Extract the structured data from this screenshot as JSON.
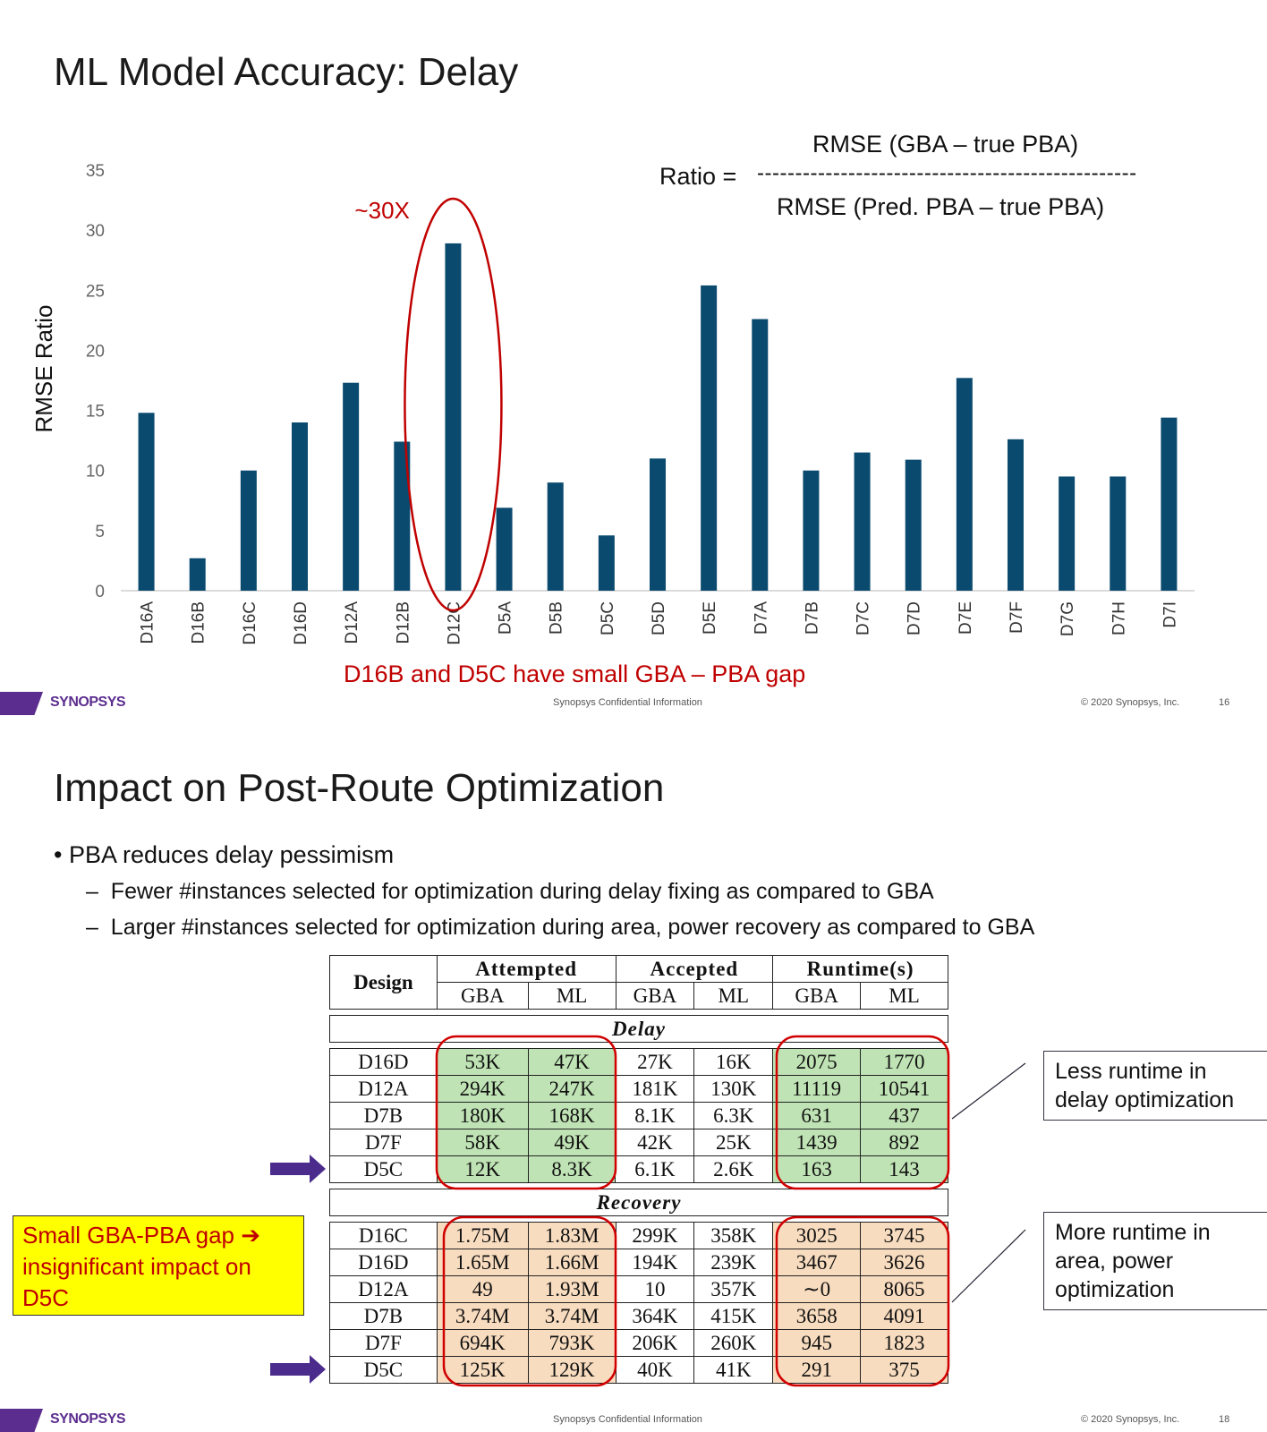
{
  "slide1": {
    "title": "ML Model Accuracy: Delay",
    "formula": {
      "ratio_label": "Ratio =",
      "numerator": "RMSE (GBA – true PBA)",
      "dashes": "--------------------------------------------------",
      "denominator": "RMSE (Pred. PBA – true PBA)"
    },
    "annotation_30x": "~30X",
    "caption": "D16B and D5C have small GBA – PBA gap",
    "footer": {
      "logo": "SYNOPSYS",
      "confidential": "Synopsys Confidential Information",
      "copyright": "© 2020 Synopsys, Inc.",
      "page": "16"
    }
  },
  "chart_data": {
    "type": "bar",
    "title": "",
    "xlabel": "",
    "ylabel": "RMSE Ratio",
    "ylim": [
      0,
      35
    ],
    "yticks": [
      "0",
      "5",
      "10",
      "15",
      "20",
      "25",
      "30",
      "35"
    ],
    "categories": [
      "D16A",
      "D16B",
      "D16C",
      "D16D",
      "D12A",
      "D12B",
      "D12C",
      "D5A",
      "D5B",
      "D5C",
      "D5D",
      "D5E",
      "D7A",
      "D7B",
      "D7C",
      "D7D",
      "D7E",
      "D7F",
      "D7G",
      "D7H",
      "D7I"
    ],
    "values": [
      14.8,
      2.7,
      10.0,
      14.0,
      17.3,
      12.4,
      28.9,
      6.9,
      9.0,
      4.6,
      11.0,
      25.4,
      22.6,
      10.0,
      11.5,
      10.9,
      17.7,
      12.6,
      9.5,
      9.5,
      14.4
    ],
    "color": "#0b4a6f",
    "highlight_category": "D12C",
    "highlight_color": "#c00000"
  },
  "slide2": {
    "title": "Impact on Post-Route Optimization",
    "bullet": "PBA reduces delay pessimism",
    "sub_bullets": [
      "Fewer #instances selected for optimization during delay fixing as compared to GBA",
      "Larger #instances selected for optimization during area, power recovery as compared to GBA"
    ],
    "table": {
      "design_header": "Design",
      "groups": [
        "Attempted",
        "Accepted",
        "Runtime(s)"
      ],
      "subheaders": [
        "GBA",
        "ML",
        "GBA",
        "ML",
        "GBA",
        "ML"
      ],
      "delay_label": "Delay",
      "delay_rows": [
        [
          "D16D",
          "53K",
          "47K",
          "27K",
          "16K",
          "2075",
          "1770"
        ],
        [
          "D12A",
          "294K",
          "247K",
          "181K",
          "130K",
          "11119",
          "10541"
        ],
        [
          "D7B",
          "180K",
          "168K",
          "8.1K",
          "6.3K",
          "631",
          "437"
        ],
        [
          "D7F",
          "58K",
          "49K",
          "42K",
          "25K",
          "1439",
          "892"
        ],
        [
          "D5C",
          "12K",
          "8.3K",
          "6.1K",
          "2.6K",
          "163",
          "143"
        ]
      ],
      "recovery_label": "Recovery",
      "recovery_rows": [
        [
          "D16C",
          "1.75M",
          "1.83M",
          "299K",
          "358K",
          "3025",
          "3745"
        ],
        [
          "D16D",
          "1.65M",
          "1.66M",
          "194K",
          "239K",
          "3467",
          "3626"
        ],
        [
          "D12A",
          "49",
          "1.93M",
          "10",
          "357K",
          "∼0",
          "8065"
        ],
        [
          "D7B",
          "3.74M",
          "3.74M",
          "364K",
          "415K",
          "3658",
          "4091"
        ],
        [
          "D7F",
          "694K",
          "793K",
          "206K",
          "260K",
          "945",
          "1823"
        ],
        [
          "D5C",
          "125K",
          "129K",
          "40K",
          "41K",
          "291",
          "375"
        ]
      ]
    },
    "callout_delay": "Less runtime in delay optimization",
    "callout_recovery": "More runtime in area, power optimization",
    "yellow_note": "Small GBA-PBA gap ➔ insignificant impact on D5C",
    "footer": {
      "logo": "SYNOPSYS",
      "confidential": "Synopsys Confidential Information",
      "copyright": "© 2020 Synopsys, Inc.",
      "page": "18"
    }
  }
}
